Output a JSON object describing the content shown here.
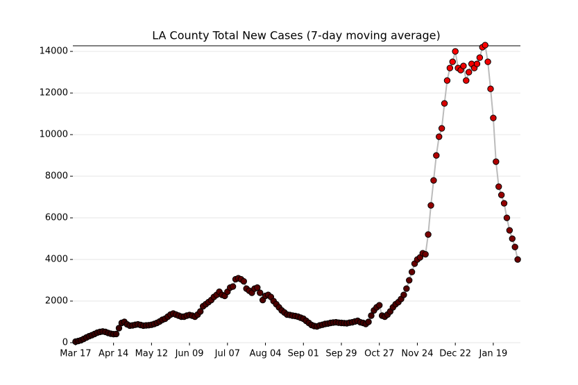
{
  "chart_data": {
    "type": "line",
    "title": "LA County Total New Cases (7-day moving average)",
    "x": [
      0,
      2,
      4,
      6,
      8,
      10,
      12,
      14,
      16,
      18,
      20,
      22,
      24,
      26,
      28,
      30,
      32,
      34,
      36,
      38,
      40,
      42,
      44,
      46,
      48,
      50,
      52,
      54,
      56,
      58,
      60,
      62,
      64,
      66,
      68,
      70,
      72,
      74,
      76,
      78,
      80,
      82,
      84,
      86,
      88,
      90,
      92,
      94,
      96,
      98,
      100,
      102,
      104,
      106,
      108,
      110,
      112,
      114,
      116,
      118,
      120,
      122,
      124,
      126,
      128,
      130,
      132,
      134,
      136,
      138,
      140,
      142,
      144,
      146,
      148,
      150,
      152,
      154,
      156,
      158,
      160,
      162,
      164,
      166,
      168,
      170,
      172,
      174,
      176,
      178,
      180,
      182,
      184,
      186,
      188,
      190,
      192,
      194,
      196,
      198,
      200,
      202,
      204,
      206,
      208,
      210,
      212,
      214,
      216,
      218,
      220,
      222,
      224,
      226,
      228,
      230,
      232,
      234,
      236,
      238,
      240,
      242,
      244,
      246,
      248,
      250,
      252,
      254,
      256,
      258,
      260,
      262,
      264,
      266,
      268,
      270,
      272,
      274,
      276,
      278,
      280,
      282,
      284,
      286,
      288,
      290,
      292,
      294,
      296,
      298,
      300,
      302,
      304,
      306,
      308,
      310,
      312,
      314,
      316,
      318,
      320,
      322,
      324,
      326
    ],
    "series": [
      {
        "values": [
          50,
          80,
          120,
          180,
          250,
          310,
          360,
          420,
          480,
          520,
          540,
          520,
          470,
          430,
          410,
          420,
          700,
          950,
          1000,
          880,
          820,
          830,
          860,
          880,
          850,
          820,
          830,
          840,
          860,
          900,
          950,
          1020,
          1100,
          1150,
          1250,
          1350,
          1400,
          1350,
          1300,
          1250,
          1250,
          1300,
          1330,
          1300,
          1250,
          1350,
          1500,
          1750,
          1850,
          1950,
          2050,
          2200,
          2300,
          2450,
          2300,
          2250,
          2450,
          2650,
          2700,
          3050,
          3100,
          3050,
          2950,
          2600,
          2500,
          2400,
          2600,
          2650,
          2400,
          2050,
          2250,
          2300,
          2200,
          2000,
          1850,
          1700,
          1550,
          1450,
          1350,
          1330,
          1300,
          1280,
          1250,
          1200,
          1150,
          1050,
          950,
          850,
          800,
          780,
          830,
          860,
          900,
          920,
          950,
          970,
          980,
          960,
          950,
          940,
          930,
          960,
          980,
          1020,
          1050,
          980,
          950,
          900,
          1000,
          1300,
          1550,
          1700,
          1800,
          1300,
          1250,
          1350,
          1500,
          1700,
          1850,
          1950,
          2100,
          2300,
          2600,
          3000,
          3400,
          3800,
          4000,
          4100,
          4300,
          4250,
          5200,
          6600,
          7800,
          9000,
          9900,
          10300,
          11500,
          12600,
          13200,
          13500,
          14000,
          13200,
          13100,
          13300,
          12600,
          13000,
          13400,
          13200,
          13400,
          13700,
          14200,
          14300,
          13500,
          12200,
          10800,
          8700,
          7500,
          7100,
          6700,
          6000,
          5400,
          5000,
          4600,
          4000
        ],
        "color": "#bbbbbb",
        "marker_colors": [
          "#300000",
          "#ff0000"
        ]
      }
    ],
    "xlim": [
      -2,
      328
    ],
    "xticks": [
      {
        "value": 0,
        "label": "Mar 17"
      },
      {
        "value": 28,
        "label": "Apr 14"
      },
      {
        "value": 56,
        "label": "May 12"
      },
      {
        "value": 84,
        "label": "Jun 09"
      },
      {
        "value": 112,
        "label": "Jul 07"
      },
      {
        "value": 140,
        "label": "Aug 04"
      },
      {
        "value": 168,
        "label": "Sep 01"
      },
      {
        "value": 196,
        "label": "Sep 29"
      },
      {
        "value": 224,
        "label": "Oct 27"
      },
      {
        "value": 252,
        "label": "Nov 24"
      },
      {
        "value": 280,
        "label": "Dec 22"
      },
      {
        "value": 308,
        "label": "Jan 19"
      }
    ],
    "ylim": [
      0,
      14270
    ],
    "yticks": [
      0,
      2000,
      4000,
      6000,
      8000,
      10000,
      12000,
      14000
    ],
    "grid": true
  }
}
